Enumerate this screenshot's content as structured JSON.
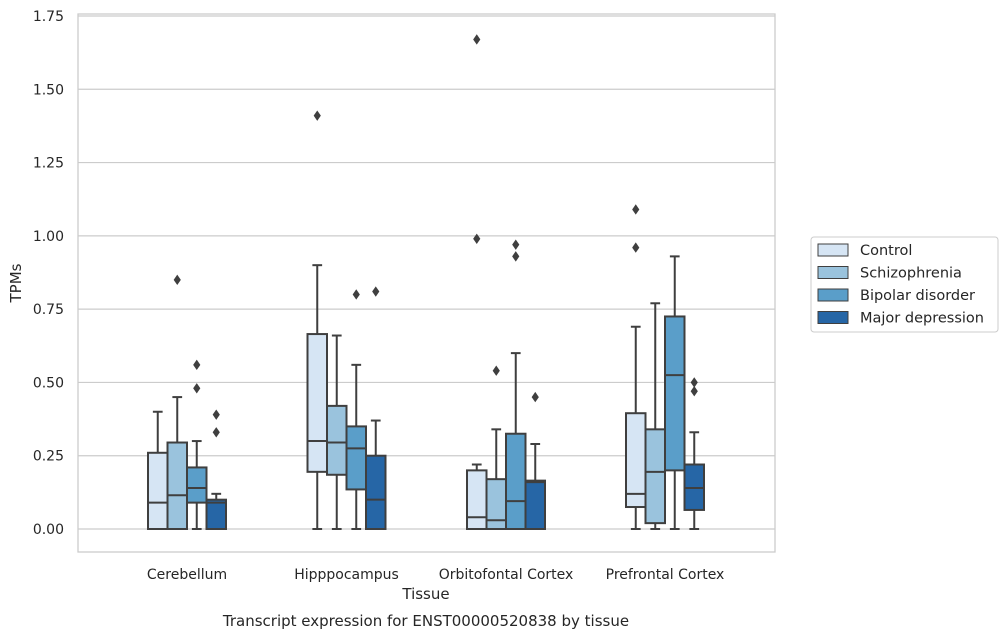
{
  "colors": {
    "background": "#ffffff",
    "grid": "#cccccc",
    "spine": "#cccccc",
    "box_edge": "#3f3f3f",
    "text": "#262626"
  },
  "chart_data": {
    "type": "box",
    "title": "",
    "xlabel": "Tissue",
    "ylabel": "TPMs",
    "caption": "Transcript expression for ENST00000520838 by tissue",
    "ylim": [
      -0.08,
      1.76
    ],
    "yticks": [
      0.0,
      0.25,
      0.5,
      0.75,
      1.0,
      1.25,
      1.5,
      1.75
    ],
    "ytick_labels": [
      "0.00",
      "0.25",
      "0.50",
      "0.75",
      "1.00",
      "1.25",
      "1.50",
      "1.75"
    ],
    "grid": true,
    "legend_position": "right",
    "categories": [
      "Cerebellum",
      "Hipppocampus",
      "Orbitofontal Cortex",
      "Prefrontal Cortex"
    ],
    "series": [
      {
        "name": "Control",
        "color": "#d6e5f4",
        "boxes": [
          {
            "whisker_low": 0.0,
            "q1": 0.0,
            "median": 0.09,
            "q3": 0.26,
            "whisker_high": 0.4,
            "outliers": []
          },
          {
            "whisker_low": 0.0,
            "q1": 0.195,
            "median": 0.3,
            "q3": 0.665,
            "whisker_high": 0.9,
            "outliers": [
              1.41
            ]
          },
          {
            "whisker_low": 0.0,
            "q1": 0.0,
            "median": 0.04,
            "q3": 0.2,
            "whisker_high": 0.22,
            "outliers": [
              0.99,
              1.67
            ]
          },
          {
            "whisker_low": 0.0,
            "q1": 0.075,
            "median": 0.12,
            "q3": 0.395,
            "whisker_high": 0.69,
            "outliers": [
              0.96,
              1.09
            ]
          }
        ]
      },
      {
        "name": "Schizophrenia",
        "color": "#9ac3dd",
        "boxes": [
          {
            "whisker_low": 0.0,
            "q1": 0.0,
            "median": 0.115,
            "q3": 0.295,
            "whisker_high": 0.45,
            "outliers": [
              0.85
            ]
          },
          {
            "whisker_low": 0.0,
            "q1": 0.185,
            "median": 0.295,
            "q3": 0.42,
            "whisker_high": 0.66,
            "outliers": []
          },
          {
            "whisker_low": 0.0,
            "q1": 0.0,
            "median": 0.03,
            "q3": 0.17,
            "whisker_high": 0.34,
            "outliers": [
              0.54
            ]
          },
          {
            "whisker_low": 0.0,
            "q1": 0.02,
            "median": 0.195,
            "q3": 0.34,
            "whisker_high": 0.77,
            "outliers": []
          }
        ]
      },
      {
        "name": "Bipolar disorder",
        "color": "#5a9ec9",
        "boxes": [
          {
            "whisker_low": 0.0,
            "q1": 0.09,
            "median": 0.14,
            "q3": 0.21,
            "whisker_high": 0.3,
            "outliers": [
              0.48,
              0.56
            ]
          },
          {
            "whisker_low": 0.0,
            "q1": 0.135,
            "median": 0.275,
            "q3": 0.35,
            "whisker_high": 0.56,
            "outliers": [
              0.8
            ]
          },
          {
            "whisker_low": 0.0,
            "q1": 0.0,
            "median": 0.095,
            "q3": 0.325,
            "whisker_high": 0.6,
            "outliers": [
              0.93,
              0.97
            ]
          },
          {
            "whisker_low": 0.0,
            "q1": 0.2,
            "median": 0.525,
            "q3": 0.725,
            "whisker_high": 0.93,
            "outliers": []
          }
        ]
      },
      {
        "name": "Major depression",
        "color": "#2666a6",
        "boxes": [
          {
            "whisker_low": 0.0,
            "q1": 0.0,
            "median": 0.09,
            "q3": 0.1,
            "whisker_high": 0.12,
            "outliers": [
              0.33,
              0.39
            ]
          },
          {
            "whisker_low": 0.0,
            "q1": 0.0,
            "median": 0.1,
            "q3": 0.25,
            "whisker_high": 0.37,
            "outliers": [
              0.81
            ]
          },
          {
            "whisker_low": 0.0,
            "q1": 0.0,
            "median": 0.16,
            "q3": 0.165,
            "whisker_high": 0.29,
            "outliers": [
              0.45
            ]
          },
          {
            "whisker_low": 0.0,
            "q1": 0.065,
            "median": 0.14,
            "q3": 0.22,
            "whisker_high": 0.33,
            "outliers": [
              0.47,
              0.5
            ]
          }
        ]
      }
    ]
  }
}
